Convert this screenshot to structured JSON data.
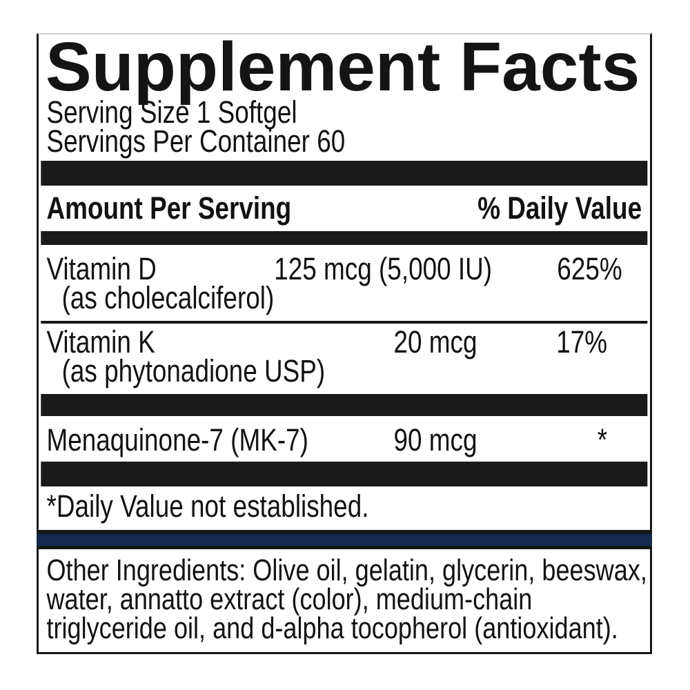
{
  "label": {
    "title": "Supplement Facts",
    "serving_size": "Serving Size 1 Softgel",
    "servings_per_container": "Servings Per Container 60",
    "header": {
      "amount": "Amount Per Serving",
      "daily_value": "% Daily Value"
    },
    "rows": [
      {
        "name": "Vitamin D",
        "detail": "(as cholecalciferol)",
        "amount": "125 mcg (5,000 IU)",
        "dv": "625%"
      },
      {
        "name": "Vitamin K",
        "detail": "(as phytonadione USP)",
        "amount": "20 mcg",
        "dv": "17%"
      },
      {
        "name": "Menaquinone-7 (MK-7)",
        "detail": "",
        "amount": "90 mcg",
        "dv": "*"
      }
    ],
    "footnote": "*Daily Value not established.",
    "other_ingredients": {
      "lines": [
        "Other Ingredients: Olive oil, gelatin, glycerin, beeswax,",
        "water, annatto extract (color), medium-chain",
        "triglyceride oil, and d-alpha tocopherol (antioxidant)."
      ]
    },
    "colors": {
      "accent_navy": "#132a4c",
      "bar_black": "#1a1a1a"
    }
  }
}
